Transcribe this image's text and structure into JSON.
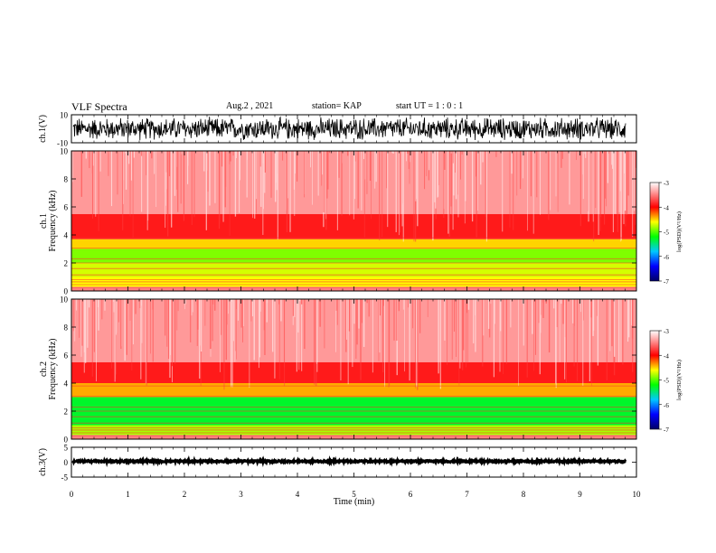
{
  "header": {
    "title": "VLF Spectra",
    "date": "Aug.2 , 2021",
    "station": "station= KAP",
    "start": "start UT = 1 : 0 : 1"
  },
  "colors": {
    "background": "#ffffff",
    "waveform": "#000000",
    "colorbar_stops": [
      "#000066",
      "#0000ff",
      "#00c8ff",
      "#00ff00",
      "#ffff00",
      "#ff0000",
      "#ffffff"
    ]
  },
  "chart_data": [
    {
      "type": "line",
      "panel": "ch1-waveform",
      "ylabel": "ch.1(V)",
      "ylim": [
        -10,
        10
      ],
      "yticks": [
        "10",
        "-10"
      ],
      "xlim": [
        0,
        10
      ],
      "description_values": {
        "mean": 0,
        "amplitude_range": [
          -9,
          9
        ]
      }
    },
    {
      "type": "heatmap",
      "panel": "ch1-spectrogram",
      "ylabel": "ch.1 Frequency (kHz)",
      "ylim": [
        0,
        10
      ],
      "yticks": [
        "0",
        "2",
        "4",
        "6",
        "8",
        "10"
      ],
      "xlim": [
        0,
        10
      ],
      "bands": [
        {
          "freq_range": [
            0,
            0.3
          ],
          "log_psd": -3.5
        },
        {
          "freq_range": [
            0.3,
            1.0
          ],
          "log_psd": -4.6
        },
        {
          "freq_range": [
            1.0,
            2.0
          ],
          "log_psd": -4.7
        },
        {
          "freq_range": [
            2.0,
            3.0
          ],
          "log_psd": -4.9
        },
        {
          "freq_range": [
            3.0,
            3.7
          ],
          "log_psd": -4.5
        },
        {
          "freq_range": [
            3.7,
            5.5
          ],
          "log_psd": -3.9
        },
        {
          "freq_range": [
            5.5,
            10.0
          ],
          "log_psd": -3.4
        }
      ],
      "colorbar": {
        "label": "log(PSD)(V²/Hz)",
        "range": [
          -7,
          -3
        ],
        "ticks": [
          "-3",
          "-4",
          "-5",
          "-6",
          "-7"
        ]
      }
    },
    {
      "type": "heatmap",
      "panel": "ch2-spectrogram",
      "ylabel": "ch.2 Frequency (kHz)",
      "ylim": [
        0,
        10
      ],
      "yticks": [
        "0",
        "2",
        "4",
        "6",
        "8",
        "10"
      ],
      "xlim": [
        0,
        10
      ],
      "bands": [
        {
          "freq_range": [
            0,
            0.3
          ],
          "log_psd": -3.5
        },
        {
          "freq_range": [
            0.3,
            1.0
          ],
          "log_psd": -4.8
        },
        {
          "freq_range": [
            1.0,
            2.0
          ],
          "log_psd": -5.3
        },
        {
          "freq_range": [
            2.0,
            3.0
          ],
          "log_psd": -5.3
        },
        {
          "freq_range": [
            3.0,
            4.0
          ],
          "log_psd": -4.4
        },
        {
          "freq_range": [
            4.0,
            5.5
          ],
          "log_psd": -3.9
        },
        {
          "freq_range": [
            5.5,
            10.0
          ],
          "log_psd": -3.4
        }
      ],
      "colorbar": {
        "label": "log(PSD)(V²/Hz)",
        "range": [
          -7,
          -3
        ],
        "ticks": [
          "-3",
          "-4",
          "-5",
          "-6",
          "-7"
        ]
      }
    },
    {
      "type": "line",
      "panel": "ch3-waveform",
      "ylabel": "ch.3(V)",
      "ylim": [
        -5,
        5
      ],
      "yticks": [
        "5",
        "0",
        "-5"
      ],
      "xlim": [
        0,
        10
      ],
      "description_values": {
        "mean": 0.3,
        "amplitude_range": [
          0.0,
          0.6
        ]
      }
    }
  ],
  "xaxis": {
    "label": "Time (min)",
    "ticks": [
      "0",
      "1",
      "2",
      "3",
      "4",
      "5",
      "6",
      "7",
      "8",
      "9",
      "10"
    ],
    "range": [
      0,
      10
    ]
  }
}
